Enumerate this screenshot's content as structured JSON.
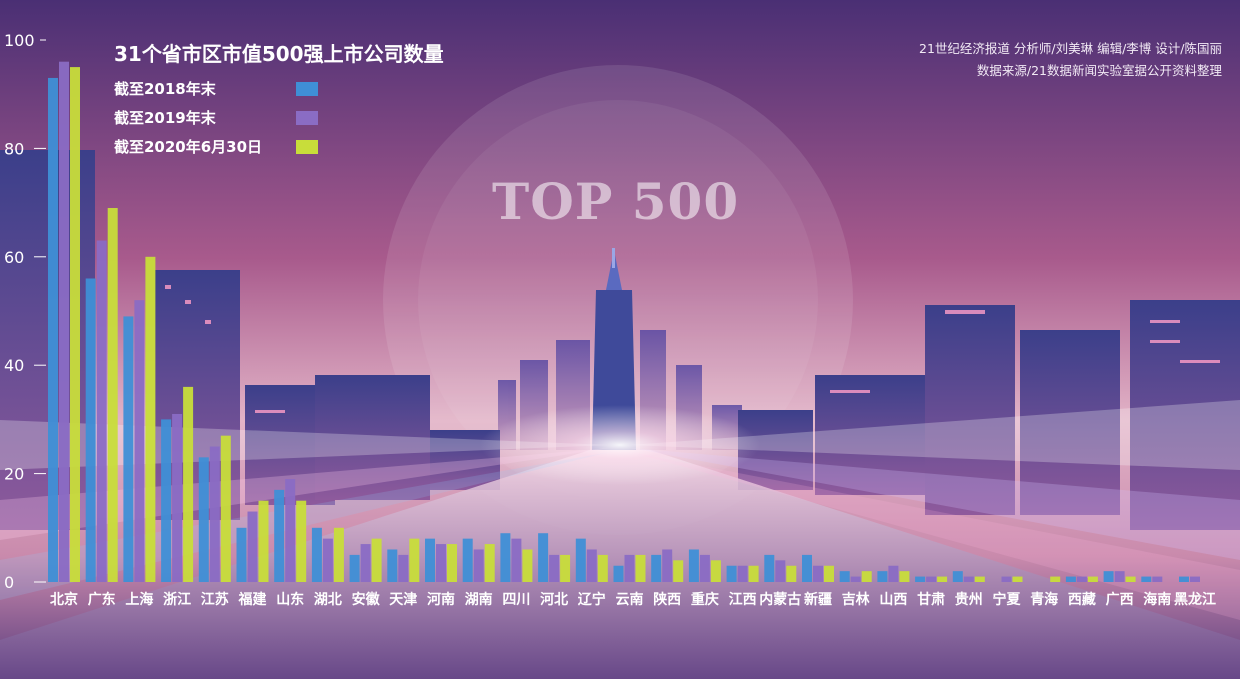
{
  "header": {
    "title": "31个省市区市值500强上市公司数量",
    "credits_line1": "21世纪经济报道  分析师/刘美琳 编辑/李博  设计/陈国丽",
    "credits_line2": "数据来源/21数据新闻实验室据公开资料整理",
    "watermark": "TOP 500"
  },
  "legend": [
    {
      "label": "截至2018年末",
      "color": "#3f8fd6"
    },
    {
      "label": "截至2019年末",
      "color": "#8a6cc4"
    },
    {
      "label": "截至2020年6月30日",
      "color": "#c8dd3a"
    }
  ],
  "chart_data": {
    "type": "bar",
    "title": "31个省市区市值500强上市公司数量",
    "categories": [
      "北京",
      "广东",
      "上海",
      "浙江",
      "江苏",
      "福建",
      "山东",
      "湖北",
      "安徽",
      "天津",
      "河南",
      "湖南",
      "四川",
      "河北",
      "辽宁",
      "云南",
      "陕西",
      "重庆",
      "江西",
      "内蒙古",
      "新疆",
      "吉林",
      "山西",
      "甘肃",
      "贵州",
      "宁夏",
      "青海",
      "西藏",
      "广西",
      "海南",
      "黑龙江"
    ],
    "series": [
      {
        "name": "截至2018年末",
        "values": [
          93,
          56,
          49,
          30,
          23,
          10,
          17,
          10,
          5,
          6,
          8,
          8,
          9,
          9,
          8,
          3,
          5,
          6,
          3,
          5,
          5,
          2,
          2,
          1,
          2,
          0,
          0,
          1,
          2,
          1,
          1
        ]
      },
      {
        "name": "截至2019年末",
        "values": [
          96,
          63,
          52,
          31,
          25,
          13,
          19,
          8,
          7,
          5,
          7,
          6,
          8,
          5,
          6,
          5,
          6,
          5,
          3,
          4,
          3,
          1,
          3,
          1,
          1,
          1,
          0,
          1,
          2,
          1,
          1
        ]
      },
      {
        "name": "截至2020年6月30日",
        "values": [
          95,
          69,
          60,
          36,
          27,
          15,
          15,
          10,
          8,
          8,
          7,
          7,
          6,
          5,
          5,
          5,
          4,
          4,
          3,
          3,
          3,
          2,
          2,
          1,
          1,
          1,
          1,
          1,
          1,
          0,
          0
        ]
      }
    ],
    "yticks": [
      0,
      20,
      40,
      60,
      80,
      100
    ],
    "ylim": [
      0,
      100
    ],
    "legend_position": "top-left",
    "grid": false
  }
}
